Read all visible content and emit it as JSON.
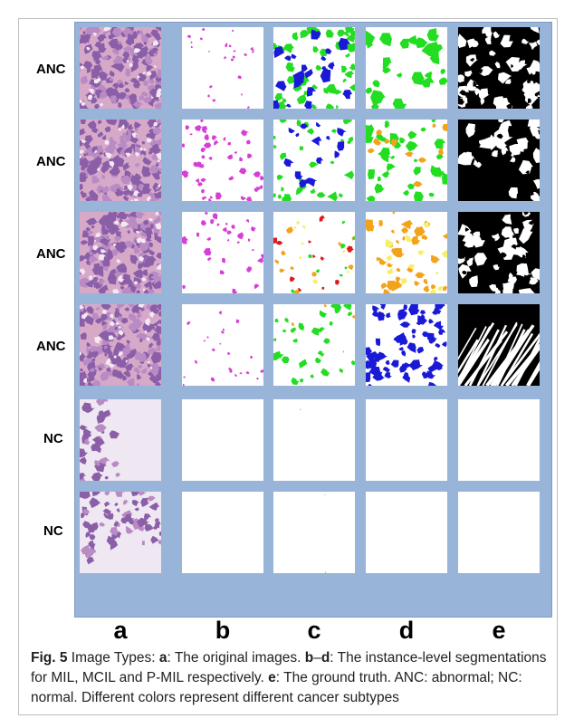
{
  "figure": {
    "rows": [
      {
        "label": "ANC"
      },
      {
        "label": "ANC"
      },
      {
        "label": "ANC"
      },
      {
        "label": "ANC"
      },
      {
        "label": "NC"
      },
      {
        "label": "NC"
      }
    ],
    "columns": [
      {
        "letter": "a"
      },
      {
        "letter": "b"
      },
      {
        "letter": "c"
      },
      {
        "letter": "d"
      },
      {
        "letter": "e"
      }
    ],
    "colors": {
      "panel_background": "#98b4d8",
      "tissue_purple": "#8a5fa8",
      "tissue_pink": "#d7a9c9",
      "magenta": "#d63fd6",
      "green": "#22dd22",
      "blue": "#1a1ad6",
      "orange": "#f2a31a",
      "red": "#e01a1a",
      "yellow": "#f5f06a",
      "black": "#000000"
    }
  },
  "caption": {
    "fig_label": "Fig. 5",
    "intro": " Image Types: ",
    "a_letter": "a",
    "a_text": ": The original images. ",
    "b_letter": "b",
    "dash": "–",
    "d_letter": "d",
    "bd_text": ": The instance-level segmentations for MIL, MCIL and P-MIL respectively. ",
    "e_letter": "e",
    "e_text": ": The ground truth. ANC: abnormal; NC: normal. Different colors represent different cancer subtypes"
  }
}
